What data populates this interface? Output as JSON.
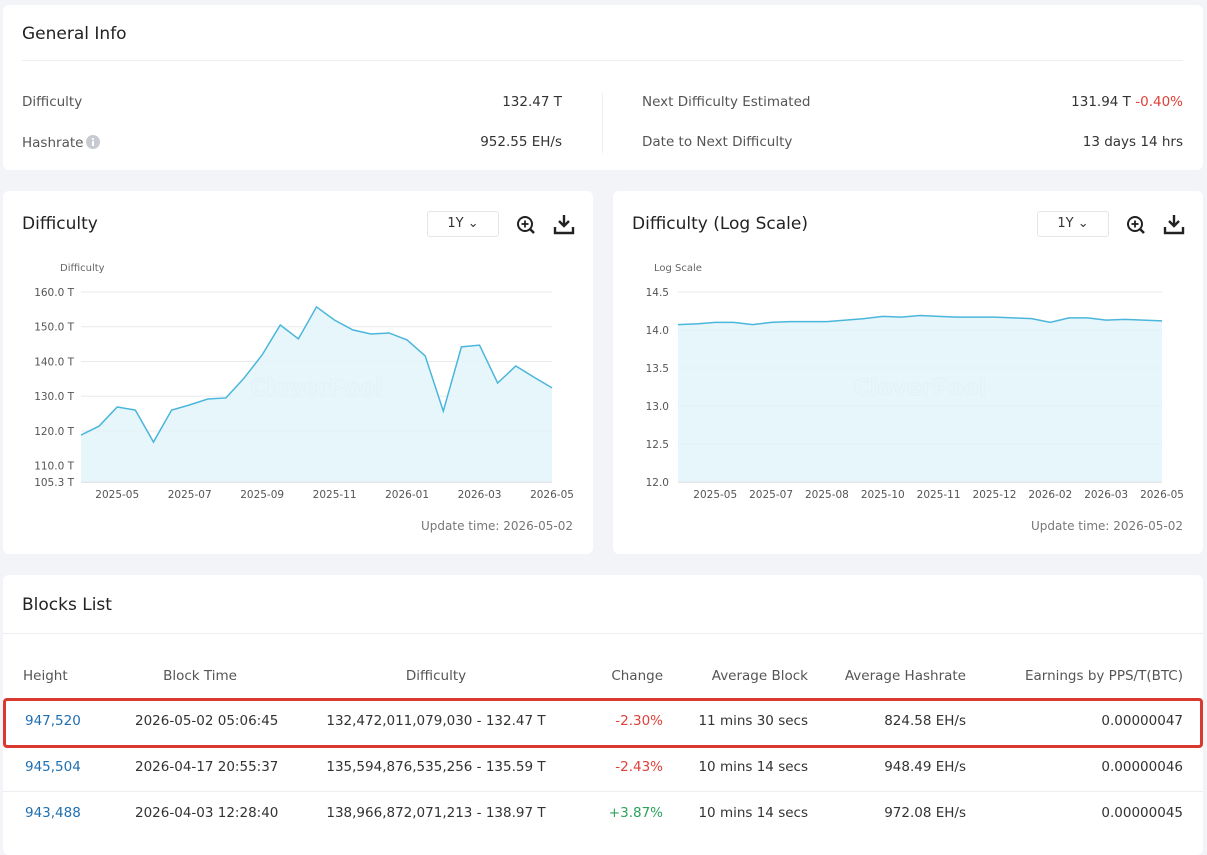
{
  "general_info": {
    "title": "General Info",
    "difficulty_label": "Difficulty",
    "difficulty": "132.47 T",
    "hashrate_label": "Hashrate",
    "hashrate": "952.55 EH/s",
    "next_label": "Next Difficulty Estimated",
    "next_value": "131.94 T",
    "next_change": "-0.40%",
    "date_label": "Date to Next Difficulty",
    "date_value": "13 days 14 hrs"
  },
  "chart_data": [
    {
      "type": "line",
      "title": "Difficulty",
      "range": "1Y",
      "y_axis_label": "Difficulty",
      "watermark": "CloverPool",
      "update_time": "Update time: 2026-05-02",
      "color": "#4bb6dc",
      "grid": true,
      "categories": [
        null,
        null,
        "2025-05",
        null,
        null,
        null,
        "2025-07",
        null,
        null,
        null,
        "2025-09",
        null,
        null,
        null,
        "2025-11",
        null,
        null,
        null,
        "2026-01",
        null,
        null,
        null,
        "2026-03",
        null,
        null,
        null,
        "2026-05"
      ],
      "values": [
        118.8,
        121.4,
        126.9,
        126.0,
        116.8,
        126.0,
        127.5,
        129.2,
        129.5,
        135.2,
        141.9,
        150.5,
        146.5,
        155.7,
        151.9,
        149.1,
        147.9,
        148.2,
        146.2,
        141.6,
        125.7,
        144.2,
        144.7,
        133.8,
        138.7,
        135.5,
        132.4
      ],
      "ylim": [
        105.3,
        160
      ],
      "yticks": [
        {
          "value": 105.3,
          "label": "105.3 T"
        },
        {
          "value": 110,
          "label": "110.0 T"
        },
        {
          "value": 120,
          "label": "120.0 T"
        },
        {
          "value": 130,
          "label": "130.0 T"
        },
        {
          "value": 140,
          "label": "140.0 T"
        },
        {
          "value": 150,
          "label": "150.0 T"
        },
        {
          "value": 160,
          "label": "160.0 T"
        }
      ]
    },
    {
      "type": "line",
      "title": "Difficulty (Log Scale)",
      "range": "1Y",
      "y_axis_label": "Log Scale",
      "watermark": "CloverPool",
      "update_time": "Update time: 2026-05-02",
      "color": "#4bb6dc",
      "grid": true,
      "categories": [
        null,
        null,
        "2025-05",
        null,
        null,
        "2025-07",
        null,
        null,
        "2025-08",
        null,
        null,
        "2025-10",
        null,
        null,
        "2025-11",
        null,
        null,
        "2025-12",
        null,
        null,
        "2026-02",
        null,
        null,
        "2026-03",
        null,
        null,
        "2026-05"
      ],
      "values": [
        14.07,
        14.08,
        14.1,
        14.1,
        14.07,
        14.1,
        14.11,
        14.11,
        14.11,
        14.13,
        14.15,
        14.18,
        14.17,
        14.19,
        14.18,
        14.17,
        14.17,
        14.17,
        14.16,
        14.15,
        14.1,
        14.16,
        14.16,
        14.13,
        14.14,
        14.13,
        14.12
      ],
      "ylim": [
        12,
        14.5
      ],
      "yticks": [
        {
          "value": 12,
          "label": "12.0"
        },
        {
          "value": 12.5,
          "label": "12.5"
        },
        {
          "value": 13,
          "label": "13.0"
        },
        {
          "value": 13.5,
          "label": "13.5"
        },
        {
          "value": 14,
          "label": "14.0"
        },
        {
          "value": 14.5,
          "label": "14.5"
        }
      ]
    }
  ],
  "blocks": {
    "title": "Blocks List",
    "columns": [
      "Height",
      "Block Time",
      "Difficulty",
      "Change",
      "Average Block",
      "Average Hashrate",
      "Earnings by PPS/T(BTC)"
    ],
    "rows": [
      [
        "947,520",
        "2026-05-02 05:06:45",
        "132,472,011,079,030 - 132.47 T",
        "-2.30%",
        "11 mins 30 secs",
        "824.58 EH/s",
        "0.00000047"
      ],
      [
        "945,504",
        "2026-04-17 20:55:37",
        "135,594,876,535,256 - 135.59 T",
        "-2.43%",
        "10 mins 14 secs",
        "948.49 EH/s",
        "0.00000046"
      ],
      [
        "943,488",
        "2026-04-03 12:28:40",
        "138,966,872,071,213 - 138.97 T",
        "+3.87%",
        "10 mins 14 secs",
        "972.08 EH/s",
        "0.00000045"
      ]
    ]
  }
}
